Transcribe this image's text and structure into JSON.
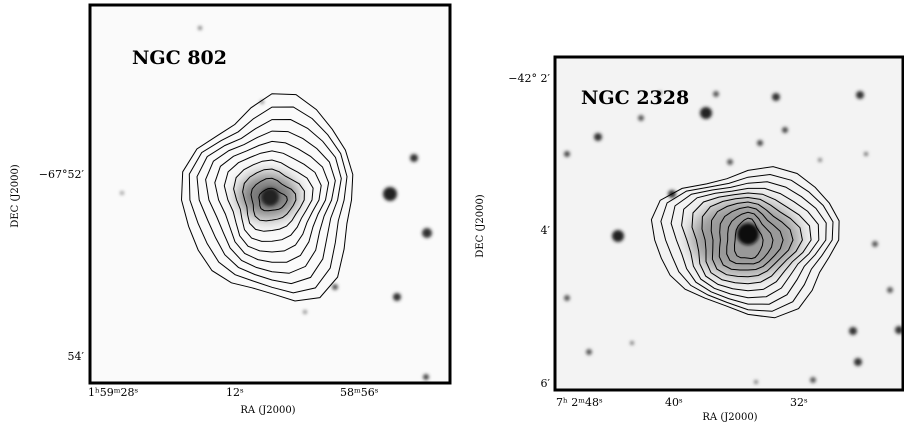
{
  "panels": [
    {
      "title": "NGC 802",
      "xlabel": "RA (J2000)",
      "ylabel": "DEC (J2000)",
      "xticks": [
        "1ʰ59ᵐ28ˢ",
        "12ˢ",
        "58ᵐ56ˢ"
      ],
      "yticks": [
        "−67°52′",
        "54′"
      ]
    },
    {
      "title": "NGC 2328",
      "xlabel": "RA (J2000)",
      "ylabel": "DEC (J2000)",
      "xticks": [
        "7ʰ 2ᵐ48ˢ",
        "40ˢ",
        "32ˢ"
      ],
      "yticks": [
        "−42° 2′",
        "4′",
        "6′"
      ]
    }
  ]
}
